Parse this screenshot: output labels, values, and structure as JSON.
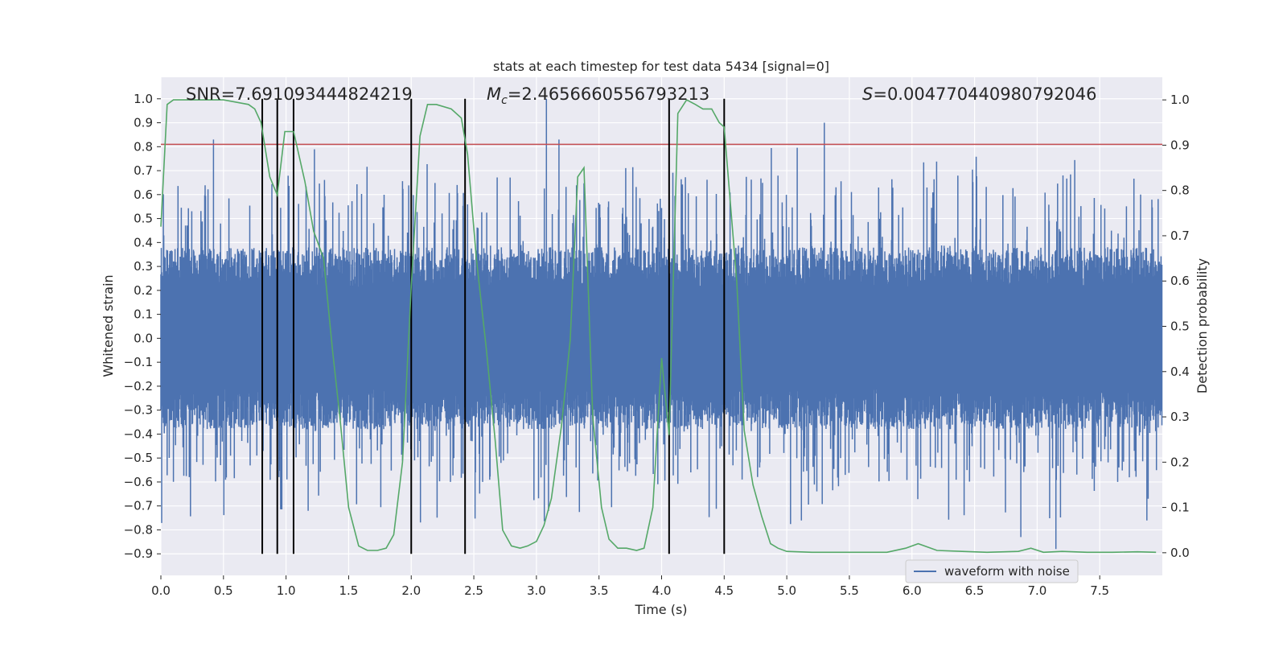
{
  "chart_data": {
    "type": "line",
    "title": "stats at each timestep for test data 5434 [signal=0]",
    "xlabel": "Time (s)",
    "ylabel_left": "Whitened strain",
    "ylabel_right": "Detection probability",
    "xlim": [
      0.0,
      8.0
    ],
    "ylim_left": [
      -0.99,
      1.09
    ],
    "ylim_right": [
      -0.05,
      1.05
    ],
    "x_ticks": [
      "0.0",
      "0.5",
      "1.0",
      "1.5",
      "2.0",
      "2.5",
      "3.0",
      "3.5",
      "4.0",
      "4.5",
      "5.0",
      "5.5",
      "6.0",
      "6.5",
      "7.0",
      "7.5"
    ],
    "y_left_ticks": [
      "1.0",
      "0.9",
      "0.8",
      "0.7",
      "0.6",
      "0.5",
      "0.4",
      "0.3",
      "0.2",
      "0.1",
      "0.0",
      "−0.1",
      "−0.2",
      "−0.3",
      "−0.4",
      "−0.5",
      "−0.6",
      "−0.7",
      "−0.8",
      "−0.9"
    ],
    "y_right_ticks": [
      "1.0",
      "0.9",
      "0.8",
      "0.7",
      "0.6",
      "0.5",
      "0.4",
      "0.3",
      "0.2",
      "0.1",
      "0.0"
    ],
    "grid": true,
    "legend": {
      "position": "lower-right",
      "entries": [
        "waveform with noise"
      ]
    },
    "annotations": {
      "snr": "SNR=7.691093444824219",
      "mc_prefix": "M",
      "mc_sub": "c",
      "mc_value": "=2.4656660556793213",
      "s_prefix": "S",
      "s_value": "=0.004770440980792046"
    },
    "threshold": {
      "value_left": 0.81,
      "color": "#c44e52"
    },
    "vertical_lines": [
      0.81,
      0.93,
      1.06,
      2.0,
      2.43,
      4.06,
      4.5
    ],
    "vline_range_left": [
      -0.9,
      1.0
    ],
    "waveform": {
      "name": "waveform with noise",
      "color": "#4c72b0",
      "duration": 8.0,
      "core_amplitude": 0.38,
      "max_peak": 1.0,
      "min_trough": -0.9,
      "notable_peaks": [
        {
          "t": 0.42,
          "v": 0.83
        },
        {
          "t": 3.08,
          "v": 1.0
        },
        {
          "t": 3.18,
          "v": 0.83
        },
        {
          "t": 5.3,
          "v": 0.9
        },
        {
          "t": 7.15,
          "v": -0.88
        },
        {
          "t": 6.87,
          "v": -0.83
        }
      ]
    },
    "probability_series": {
      "name": "Detection probability",
      "color": "#55a868",
      "x": [
        0.0,
        0.05,
        0.1,
        0.2,
        0.3,
        0.5,
        0.7,
        0.75,
        0.8,
        0.87,
        0.93,
        0.99,
        1.06,
        1.15,
        1.22,
        1.3,
        1.37,
        1.43,
        1.5,
        1.58,
        1.65,
        1.73,
        1.8,
        1.86,
        1.93,
        2.0,
        2.07,
        2.13,
        2.2,
        2.32,
        2.4,
        2.45,
        2.52,
        2.6,
        2.67,
        2.73,
        2.8,
        2.87,
        2.93,
        3.0,
        3.06,
        3.12,
        3.2,
        3.27,
        3.33,
        3.38,
        3.45,
        3.52,
        3.58,
        3.65,
        3.72,
        3.8,
        3.86,
        3.93,
        4.0,
        4.06,
        4.13,
        4.2,
        4.27,
        4.33,
        4.4,
        4.46,
        4.5,
        4.6,
        4.66,
        4.73,
        4.8,
        4.87,
        4.93,
        5.0,
        5.2,
        5.5,
        5.8,
        5.95,
        6.05,
        6.2,
        6.4,
        6.6,
        6.85,
        6.95,
        7.05,
        7.2,
        7.4,
        7.6,
        7.8,
        7.95
      ],
      "y": [
        0.72,
        0.99,
        1.0,
        1.0,
        1.0,
        1.0,
        0.99,
        0.98,
        0.95,
        0.83,
        0.79,
        0.93,
        0.93,
        0.82,
        0.71,
        0.65,
        0.45,
        0.3,
        0.1,
        0.015,
        0.005,
        0.005,
        0.01,
        0.04,
        0.2,
        0.59,
        0.92,
        0.99,
        0.99,
        0.98,
        0.96,
        0.88,
        0.65,
        0.45,
        0.25,
        0.05,
        0.015,
        0.01,
        0.015,
        0.025,
        0.06,
        0.12,
        0.28,
        0.47,
        0.83,
        0.85,
        0.3,
        0.1,
        0.03,
        0.01,
        0.01,
        0.005,
        0.01,
        0.1,
        0.43,
        0.26,
        0.97,
        1.0,
        0.99,
        0.98,
        0.98,
        0.95,
        0.94,
        0.6,
        0.27,
        0.15,
        0.08,
        0.02,
        0.01,
        0.003,
        0.001,
        0.001,
        0.001,
        0.01,
        0.02,
        0.005,
        0.003,
        0.001,
        0.003,
        0.01,
        0.001,
        0.003,
        0.001,
        0.001,
        0.002,
        0.001
      ]
    }
  }
}
